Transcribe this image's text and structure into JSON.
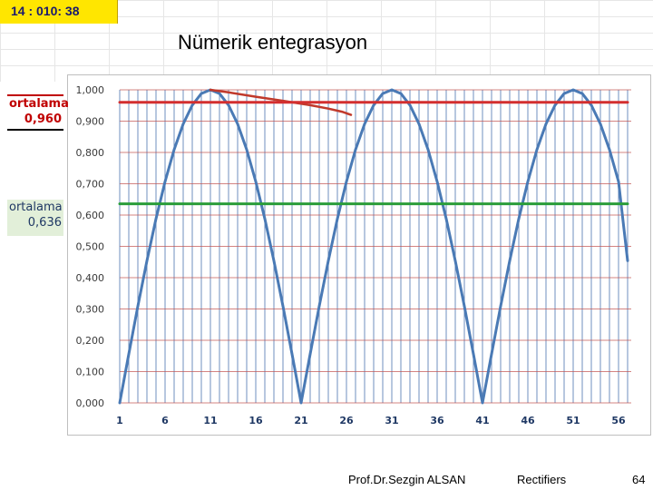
{
  "time_cell": "14 : 010: 38",
  "title": "Nümerik entegrasyon",
  "callouts": {
    "red": {
      "label": "ortalama",
      "value": "0,960",
      "color": "#c00000"
    },
    "green": {
      "label": "ortalama",
      "value": "0,636",
      "color": "#2a9d3a"
    }
  },
  "footer": {
    "author": "Prof.Dr.Sezgin ALSAN",
    "topic": "Rectifiers",
    "page": "64"
  },
  "chart_data": {
    "type": "line",
    "title": "",
    "xlabel": "",
    "ylabel": "",
    "ylim": [
      0,
      1
    ],
    "xlim": [
      1,
      57
    ],
    "y_ticks": [
      "0,000",
      "0,100",
      "0,200",
      "0,300",
      "0,400",
      "0,500",
      "0,600",
      "0,700",
      "0,800",
      "0,900",
      "1,000"
    ],
    "x_ticks": [
      "1",
      "6",
      "11",
      "16",
      "21",
      "26",
      "31",
      "36",
      "41",
      "46",
      "51",
      "56"
    ],
    "grid": true,
    "series": [
      {
        "color": "#4a7ab5",
        "x": [
          1,
          2,
          3,
          4,
          5,
          6,
          7,
          8,
          9,
          10,
          11,
          12,
          13,
          14,
          15,
          16,
          17,
          18,
          19,
          20,
          21,
          22,
          23,
          24,
          25,
          26,
          27,
          28,
          29,
          30,
          31,
          32,
          33,
          34,
          35,
          36,
          37,
          38,
          39,
          40,
          41,
          42,
          43,
          44,
          45,
          46,
          47,
          48,
          49,
          50,
          51,
          52,
          53,
          54,
          55,
          56,
          57
        ],
        "values": [
          0.0,
          0.156,
          0.309,
          0.454,
          0.588,
          0.707,
          0.809,
          0.891,
          0.951,
          0.988,
          1.0,
          0.988,
          0.951,
          0.891,
          0.809,
          0.707,
          0.588,
          0.454,
          0.309,
          0.156,
          0.0,
          0.156,
          0.309,
          0.454,
          0.588,
          0.707,
          0.809,
          0.891,
          0.951,
          0.988,
          1.0,
          0.988,
          0.951,
          0.891,
          0.809,
          0.707,
          0.588,
          0.454,
          0.309,
          0.156,
          0.0,
          0.156,
          0.309,
          0.454,
          0.588,
          0.707,
          0.809,
          0.891,
          0.951,
          0.988,
          1.0,
          0.988,
          0.951,
          0.891,
          0.809,
          0.707,
          0.454
        ]
      },
      {
        "color": "#c0392b",
        "x": [
          11,
          13,
          16,
          19,
          22,
          24,
          25.5,
          26.5
        ],
        "values": [
          1.0,
          0.992,
          0.978,
          0.965,
          0.951,
          0.94,
          0.93,
          0.92
        ]
      },
      {
        "color": "#d32f2f",
        "x": [
          1,
          57
        ],
        "values": [
          0.96,
          0.96
        ]
      },
      {
        "color": "#2a9d3a",
        "x": [
          1,
          57
        ],
        "values": [
          0.636,
          0.636
        ]
      }
    ]
  }
}
